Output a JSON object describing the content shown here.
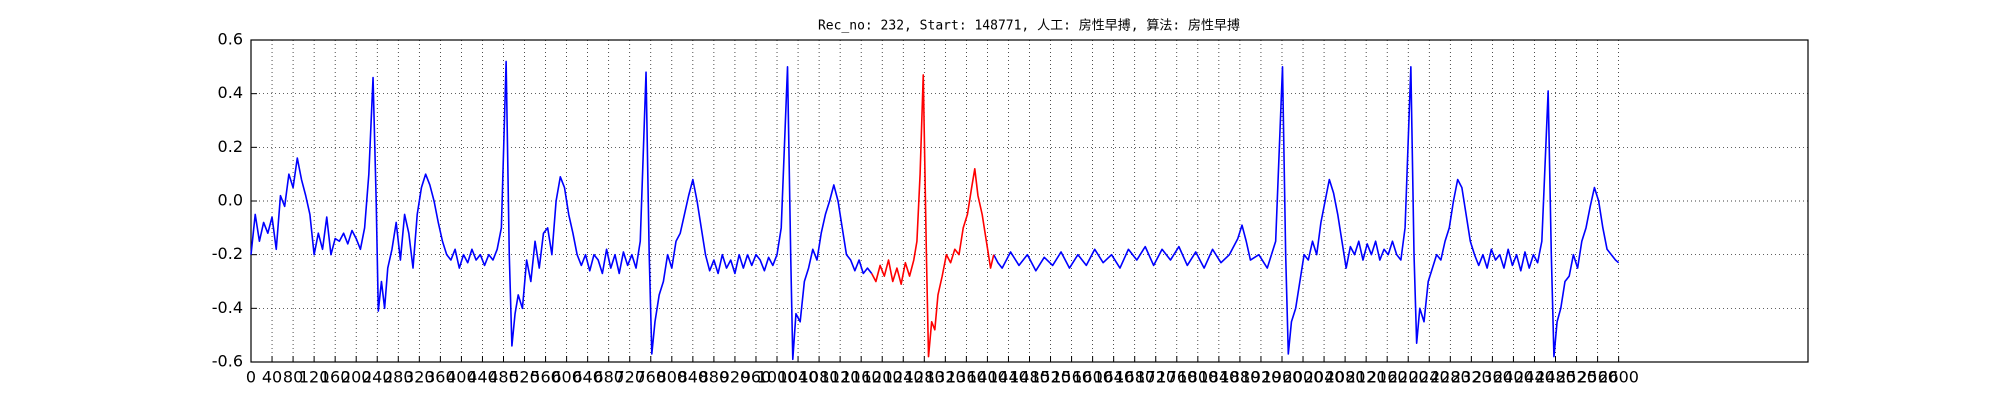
{
  "chart_data": {
    "type": "line",
    "title": "Rec_no: 232, Start: 148771, 人工: 房性早搏, 算法: 房性早搏",
    "xlim": [
      0,
      2960
    ],
    "ylim": [
      -0.6,
      0.6
    ],
    "xticks": [
      0,
      40,
      80,
      120,
      160,
      200,
      240,
      280,
      320,
      360,
      400,
      440,
      480,
      520,
      560,
      600,
      640,
      680,
      720,
      760,
      800,
      840,
      880,
      920,
      960,
      1000,
      1040,
      1080,
      1120,
      1160,
      1200,
      1240,
      1280,
      1320,
      1360,
      1400,
      1440,
      1480,
      1520,
      1560,
      1600,
      1640,
      1680,
      1720,
      1760,
      1800,
      1840,
      1880,
      1920,
      1960,
      2000,
      2040,
      2080,
      2120,
      2160,
      2200,
      2240,
      2280,
      2320,
      2360,
      2400,
      2440,
      2480,
      2520,
      2560,
      2600
    ],
    "yticks": [
      -0.6,
      -0.4,
      -0.2,
      {
        "value": 0,
        "label": "0.0"
      },
      0.2,
      0.4,
      0.6
    ],
    "grid": true,
    "series": [
      {
        "color": "#0000ff",
        "x": [
          0,
          8,
          16,
          24,
          32,
          40,
          48,
          56,
          64,
          72,
          80,
          88,
          96,
          104,
          112,
          120,
          128,
          136,
          144,
          152,
          160,
          168,
          176,
          184,
          192,
          200,
          208,
          216,
          224,
          232,
          238,
          242,
          248,
          254,
          260,
          268,
          276,
          284,
          292,
          300,
          308,
          316,
          324,
          332,
          340,
          348,
          356,
          364,
          372,
          380,
          388,
          396,
          404,
          412,
          420,
          428,
          436,
          444,
          452,
          460,
          468,
          476,
          485,
          491,
          496,
          502,
          508,
          516,
          524,
          532,
          540,
          548,
          556,
          564,
          572,
          580,
          588,
          596,
          604,
          612,
          620,
          628,
          636,
          644,
          652,
          660,
          668,
          676,
          684,
          692,
          700,
          708,
          716,
          724,
          732,
          740,
          751,
          757,
          762,
          768,
          776,
          784,
          792,
          800,
          808,
          816,
          824,
          832,
          840,
          848,
          856,
          864,
          872,
          880,
          888,
          896,
          904,
          912,
          920,
          928,
          936,
          944,
          952,
          960,
          968,
          976,
          984,
          992,
          1000,
          1008,
          1020,
          1026,
          1030,
          1036,
          1044,
          1052,
          1060,
          1068,
          1076,
          1084,
          1092,
          1100,
          1108,
          1116,
          1124,
          1132,
          1140,
          1148,
          1156,
          1164,
          1172,
          1180,
          null,
          1412,
          1420,
          1428,
          1444,
          1460,
          1476,
          1492,
          1508,
          1524,
          1540,
          1556,
          1572,
          1588,
          1604,
          1620,
          1636,
          1652,
          1668,
          1684,
          1700,
          1716,
          1732,
          1748,
          1764,
          1780,
          1796,
          1812,
          1828,
          1844,
          1860,
          1876,
          1884,
          1892,
          1900,
          1916,
          1932,
          1948,
          1961,
          1967,
          1972,
          1978,
          1986,
          1994,
          2002,
          2010,
          2018,
          2026,
          2034,
          2042,
          2050,
          2058,
          2066,
          2074,
          2082,
          2090,
          2098,
          2106,
          2114,
          2122,
          2130,
          2138,
          2146,
          2154,
          2162,
          2170,
          2178,
          2186,
          2194,
          2205,
          2211,
          2216,
          2222,
          2230,
          2238,
          2246,
          2254,
          2262,
          2270,
          2278,
          2286,
          2294,
          2302,
          2310,
          2318,
          2326,
          2334,
          2342,
          2350,
          2358,
          2366,
          2374,
          2382,
          2390,
          2398,
          2406,
          2414,
          2422,
          2430,
          2438,
          2446,
          2454,
          2466,
          2472,
          2477,
          2483,
          2490,
          2498,
          2506,
          2514,
          2522,
          2530,
          2538,
          2546,
          2554,
          2562,
          2570,
          2578,
          2586,
          2594,
          2600
        ],
        "values": [
          -0.2,
          -0.05,
          -0.15,
          -0.08,
          -0.12,
          -0.06,
          -0.18,
          0.02,
          -0.02,
          0.1,
          0.05,
          0.16,
          0.08,
          0.02,
          -0.05,
          -0.2,
          -0.12,
          -0.18,
          -0.06,
          -0.2,
          -0.14,
          -0.15,
          -0.12,
          -0.16,
          -0.11,
          -0.14,
          -0.18,
          -0.1,
          0.1,
          0.46,
          0.0,
          -0.41,
          -0.3,
          -0.4,
          -0.25,
          -0.18,
          -0.08,
          -0.22,
          -0.05,
          -0.12,
          -0.25,
          -0.05,
          0.05,
          0.1,
          0.06,
          0.0,
          -0.08,
          -0.15,
          -0.2,
          -0.22,
          -0.18,
          -0.25,
          -0.2,
          -0.23,
          -0.18,
          -0.22,
          -0.2,
          -0.24,
          -0.2,
          -0.22,
          -0.18,
          -0.1,
          0.52,
          -0.2,
          -0.54,
          -0.42,
          -0.35,
          -0.4,
          -0.22,
          -0.3,
          -0.15,
          -0.25,
          -0.12,
          -0.1,
          -0.2,
          0.0,
          0.09,
          0.05,
          -0.05,
          -0.12,
          -0.2,
          -0.24,
          -0.2,
          -0.26,
          -0.2,
          -0.22,
          -0.27,
          -0.18,
          -0.25,
          -0.2,
          -0.27,
          -0.19,
          -0.24,
          -0.2,
          -0.25,
          -0.15,
          0.48,
          -0.2,
          -0.57,
          -0.45,
          -0.35,
          -0.3,
          -0.2,
          -0.25,
          -0.15,
          -0.12,
          -0.05,
          0.02,
          0.08,
          0.0,
          -0.1,
          -0.2,
          -0.26,
          -0.22,
          -0.27,
          -0.2,
          -0.25,
          -0.22,
          -0.27,
          -0.2,
          -0.25,
          -0.2,
          -0.24,
          -0.2,
          -0.22,
          -0.26,
          -0.21,
          -0.24,
          -0.2,
          -0.1,
          0.5,
          -0.2,
          -0.59,
          -0.42,
          -0.45,
          -0.3,
          -0.25,
          -0.18,
          -0.22,
          -0.12,
          -0.05,
          0.0,
          0.06,
          0.0,
          -0.1,
          -0.2,
          -0.22,
          -0.26,
          -0.22,
          -0.27,
          -0.25,
          -0.27,
          null,
          -0.2,
          -0.23,
          -0.25,
          -0.19,
          -0.24,
          -0.2,
          -0.26,
          -0.21,
          -0.24,
          -0.19,
          -0.25,
          -0.2,
          -0.24,
          -0.18,
          -0.23,
          -0.2,
          -0.25,
          -0.18,
          -0.22,
          -0.17,
          -0.24,
          -0.18,
          -0.22,
          -0.17,
          -0.24,
          -0.19,
          -0.25,
          -0.18,
          -0.23,
          -0.2,
          -0.14,
          -0.09,
          -0.15,
          -0.22,
          -0.2,
          -0.25,
          -0.15,
          0.5,
          -0.2,
          -0.57,
          -0.45,
          -0.4,
          -0.3,
          -0.2,
          -0.22,
          -0.15,
          -0.2,
          -0.08,
          0.0,
          0.08,
          0.03,
          -0.05,
          -0.15,
          -0.25,
          -0.17,
          -0.2,
          -0.15,
          -0.22,
          -0.16,
          -0.2,
          -0.15,
          -0.22,
          -0.18,
          -0.2,
          -0.15,
          -0.2,
          -0.22,
          -0.1,
          0.5,
          -0.2,
          -0.53,
          -0.4,
          -0.45,
          -0.3,
          -0.25,
          -0.2,
          -0.22,
          -0.15,
          -0.1,
          0.0,
          0.08,
          0.05,
          -0.05,
          -0.15,
          -0.2,
          -0.24,
          -0.2,
          -0.25,
          -0.18,
          -0.22,
          -0.2,
          -0.25,
          -0.18,
          -0.24,
          -0.2,
          -0.26,
          -0.19,
          -0.25,
          -0.2,
          -0.23,
          -0.15,
          0.41,
          -0.2,
          -0.58,
          -0.45,
          -0.4,
          -0.3,
          -0.28,
          -0.2,
          -0.25,
          -0.15,
          -0.1,
          -0.02,
          0.05,
          0.0,
          -0.1,
          -0.18,
          -0.2,
          -0.22,
          -0.23
        ]
      },
      {
        "color": "#ff0000",
        "x": [
          1180,
          1188,
          1196,
          1204,
          1212,
          1220,
          1228,
          1236,
          1244,
          1252,
          1260,
          1266,
          1272,
          1278,
          1284,
          1288,
          1294,
          1300,
          1306,
          1314,
          1322,
          1330,
          1338,
          1346,
          1354,
          1362,
          1370,
          1376,
          1382,
          1390,
          1398,
          1406,
          1412
        ],
        "values": [
          -0.27,
          -0.3,
          -0.24,
          -0.28,
          -0.22,
          -0.3,
          -0.25,
          -0.31,
          -0.23,
          -0.28,
          -0.22,
          -0.15,
          0.1,
          0.47,
          -0.2,
          -0.58,
          -0.45,
          -0.48,
          -0.35,
          -0.28,
          -0.2,
          -0.23,
          -0.18,
          -0.2,
          -0.1,
          -0.05,
          0.05,
          0.12,
          0.02,
          -0.05,
          -0.15,
          -0.25,
          -0.2
        ]
      }
    ]
  }
}
